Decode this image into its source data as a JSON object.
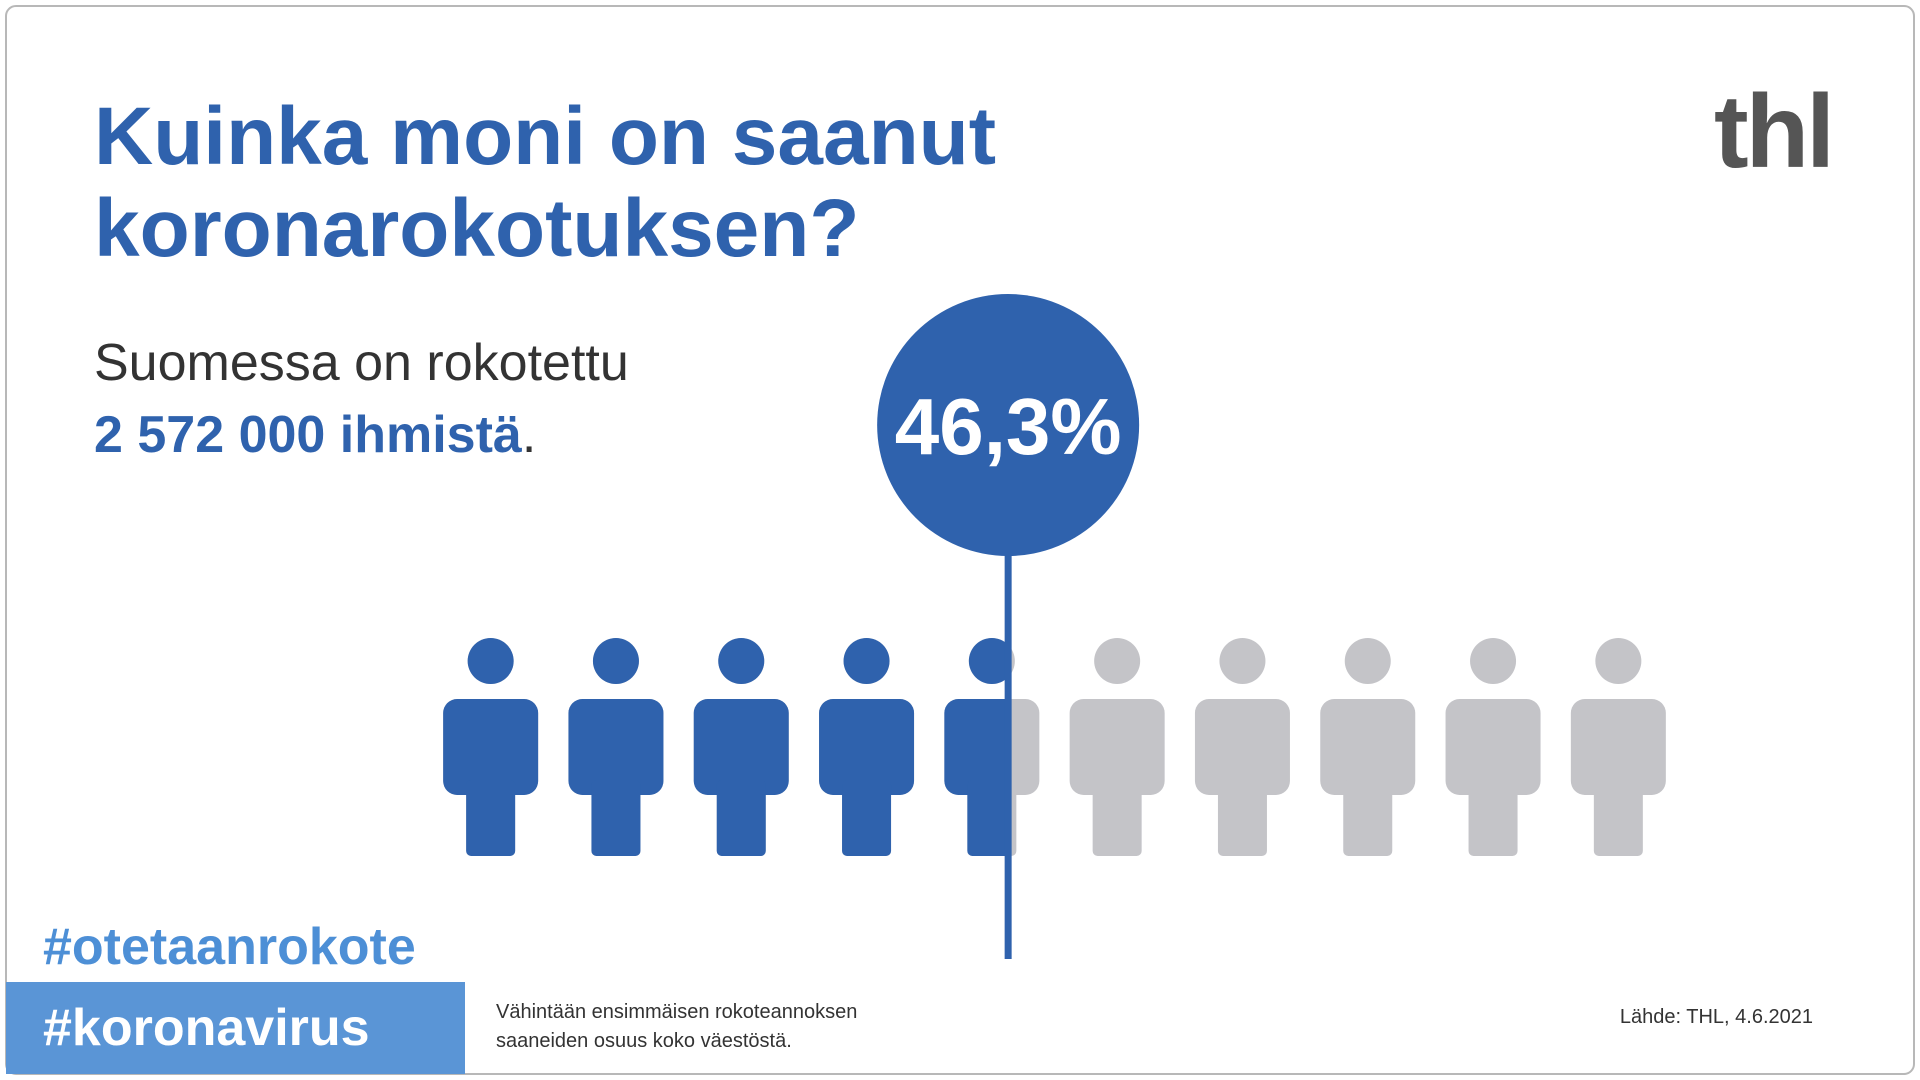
{
  "header": {
    "title": [
      "Kuinka moni on saanut",
      "koronarokotuksen?"
    ],
    "logo": "thl"
  },
  "summary": {
    "line1": "Suomessa on rokotettu",
    "highlight": "2 572 000 ihmistä",
    "end": "."
  },
  "chart_data": {
    "type": "pictogram",
    "value": 46.3,
    "value_label": "46,3%",
    "xlim": [
      0,
      100
    ],
    "color": "#2f62ad",
    "empty_color": "#c4c4c8"
  },
  "footer": {
    "hashtags": [
      "#otetaanrokote",
      "#koronavirus"
    ],
    "note": [
      "Vähintään ensimmäisen rokoteannoksen",
      "saaneiden osuus koko väestöstä."
    ],
    "source": "Lähde: THL, 4.6.2021"
  }
}
